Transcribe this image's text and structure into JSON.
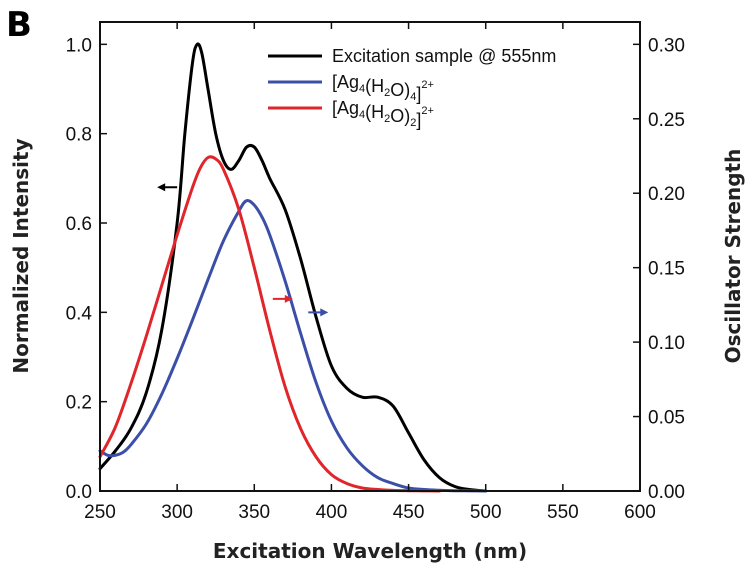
{
  "panel_label": "B",
  "chart_data": {
    "type": "line",
    "xlabel": "Excitation Wavelength (nm)",
    "ylabel_left": "Normalized Intensity",
    "ylabel_right": "Oscillator Strength",
    "xlim": [
      250,
      600
    ],
    "ylim_left": [
      0.0,
      1.05
    ],
    "ylim_right": [
      0.0,
      0.315
    ],
    "x_ticks": [
      "250",
      "300",
      "350",
      "400",
      "450",
      "500",
      "550",
      "600"
    ],
    "x_tick_values": [
      250,
      300,
      350,
      400,
      450,
      500,
      550,
      600
    ],
    "y_left_ticks": [
      "0.0",
      "0.2",
      "0.4",
      "0.6",
      "0.8",
      "1.0"
    ],
    "y_left_tick_values": [
      0.0,
      0.2,
      0.4,
      0.6,
      0.8,
      1.0
    ],
    "y_right_ticks": [
      "0.00",
      "0.05",
      "0.10",
      "0.15",
      "0.20",
      "0.25",
      "0.30"
    ],
    "y_right_tick_values": [
      0.0,
      0.05,
      0.1,
      0.15,
      0.2,
      0.25,
      0.3
    ],
    "grid": false,
    "legend_position": "top-right",
    "series": [
      {
        "name": "Excitation sample @ 555nm",
        "color": "#000000",
        "axis": "left",
        "x": [
          250,
          260,
          270,
          280,
          290,
          300,
          305,
          310,
          313,
          316,
          320,
          325,
          330,
          335,
          340,
          345,
          350,
          355,
          360,
          370,
          380,
          390,
          400,
          410,
          420,
          430,
          440,
          450,
          460,
          470,
          480,
          490,
          500
        ],
        "y": [
          0.05,
          0.09,
          0.14,
          0.22,
          0.36,
          0.6,
          0.8,
          0.96,
          1.0,
          0.98,
          0.9,
          0.8,
          0.74,
          0.72,
          0.74,
          0.77,
          0.77,
          0.74,
          0.7,
          0.63,
          0.52,
          0.39,
          0.28,
          0.23,
          0.21,
          0.21,
          0.19,
          0.13,
          0.07,
          0.03,
          0.01,
          0.003,
          0.0
        ]
      },
      {
        "name": "[Ag4(H2O)4]2+",
        "color": "#3b4fa8",
        "axis": "right",
        "x": [
          250,
          255,
          260,
          265,
          270,
          280,
          290,
          300,
          310,
          320,
          330,
          340,
          345,
          350,
          355,
          360,
          370,
          380,
          390,
          400,
          410,
          420,
          430,
          440,
          450,
          460,
          470,
          480,
          490,
          500
        ],
        "y": [
          0.027,
          0.024,
          0.024,
          0.026,
          0.031,
          0.045,
          0.065,
          0.089,
          0.115,
          0.142,
          0.168,
          0.188,
          0.195,
          0.192,
          0.184,
          0.172,
          0.141,
          0.106,
          0.073,
          0.047,
          0.029,
          0.017,
          0.009,
          0.005,
          0.002,
          0.001,
          0.0005,
          0.0002,
          0.0001,
          0.0
        ]
      },
      {
        "name": "[Ag4(H2O)2]2+",
        "color": "#e0262b",
        "axis": "right",
        "x": [
          250,
          260,
          270,
          280,
          290,
          300,
          310,
          315,
          320,
          325,
          330,
          340,
          350,
          360,
          370,
          380,
          390,
          400,
          410,
          420,
          430,
          440,
          450,
          460,
          470
        ],
        "y": [
          0.023,
          0.043,
          0.072,
          0.104,
          0.138,
          0.172,
          0.204,
          0.217,
          0.224,
          0.223,
          0.216,
          0.189,
          0.15,
          0.108,
          0.07,
          0.042,
          0.023,
          0.011,
          0.005,
          0.002,
          0.001,
          0.0004,
          0.0002,
          0.0001,
          0.0
        ]
      }
    ],
    "legend": [
      {
        "parts": [
          {
            "t": "Excitation sample @ 555nm"
          }
        ],
        "color": "#000000"
      },
      {
        "parts": [
          {
            "t": "[Ag"
          },
          {
            "t": "4",
            "s": "sub"
          },
          {
            "t": "(H"
          },
          {
            "t": "2",
            "s": "sub"
          },
          {
            "t": "O)"
          },
          {
            "t": "4",
            "s": "sub"
          },
          {
            "t": "]"
          },
          {
            "t": "2+",
            "s": "sup"
          }
        ],
        "color": "#3b4fa8"
      },
      {
        "parts": [
          {
            "t": "[Ag"
          },
          {
            "t": "4",
            "s": "sub"
          },
          {
            "t": "(H"
          },
          {
            "t": "2",
            "s": "sub"
          },
          {
            "t": "O)"
          },
          {
            "t": "2",
            "s": "sub"
          },
          {
            "t": "]"
          },
          {
            "t": "2+",
            "s": "sup"
          }
        ],
        "color": "#e0262b"
      }
    ],
    "annotations": [
      {
        "name": "arrow-left-axis-black",
        "direction": "left",
        "color": "#000000",
        "x": 300,
        "y_left": 0.68
      },
      {
        "name": "arrow-right-axis-red",
        "direction": "right",
        "color": "#e0262b",
        "x": 362,
        "y_left": 0.43
      },
      {
        "name": "arrow-right-axis-blue",
        "direction": "right",
        "color": "#3b4fa8",
        "x": 385,
        "y_left": 0.4
      }
    ]
  }
}
